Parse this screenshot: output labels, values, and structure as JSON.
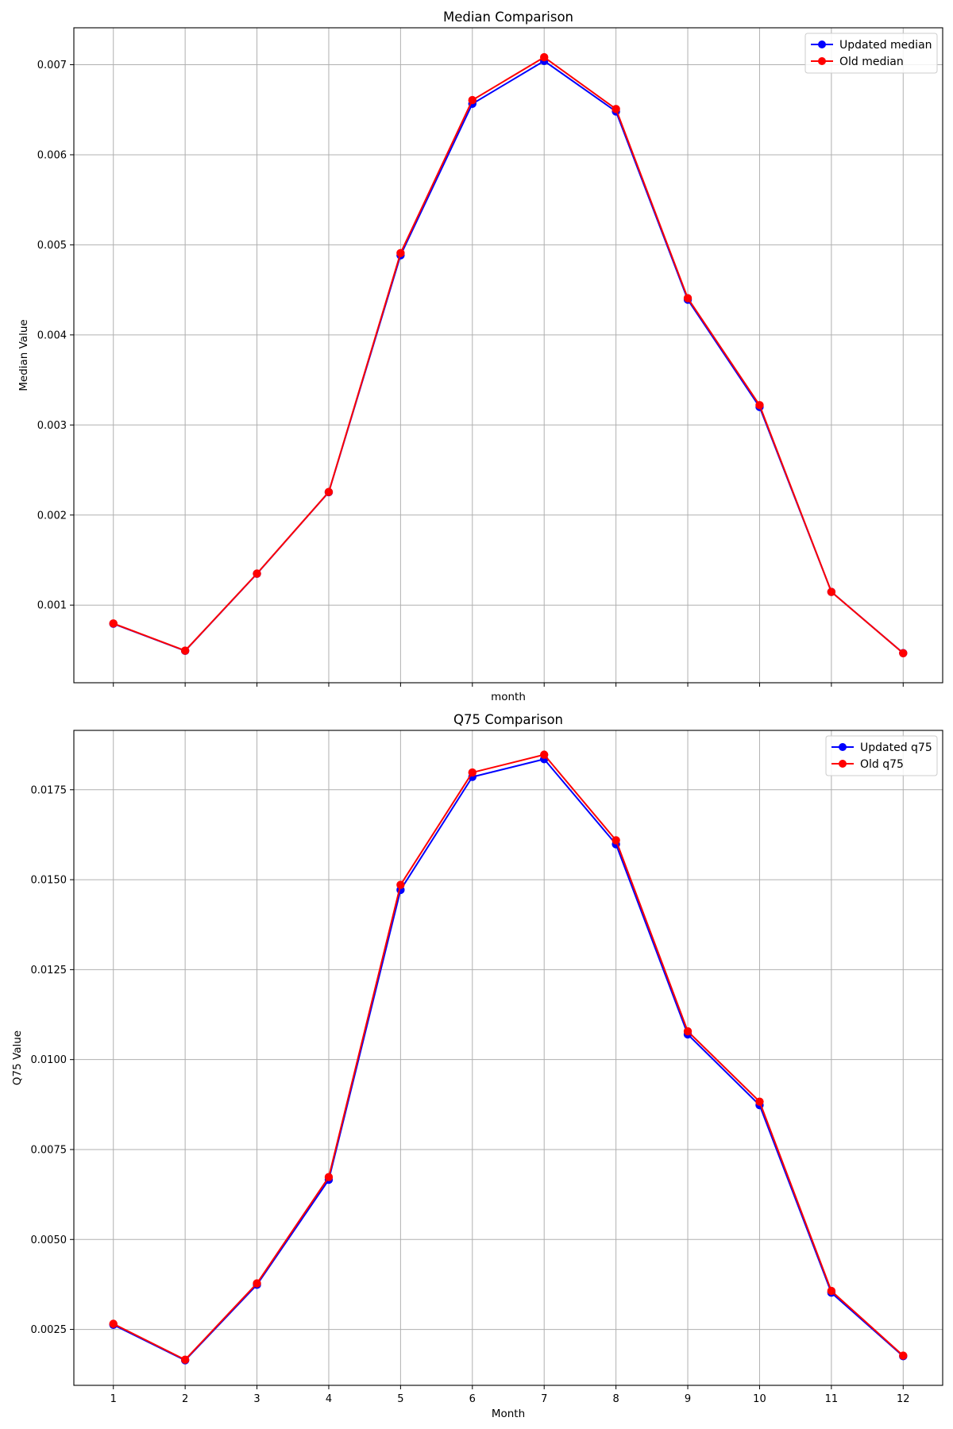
{
  "colors": {
    "updated": "#0000ff",
    "old": "#ff0000",
    "grid": "#b0b0b0",
    "axis": "#000000"
  },
  "chart_data": [
    {
      "type": "line",
      "title": "Median Comparison",
      "xlabel": "month",
      "ylabel": "Median Value",
      "x": [
        1,
        2,
        3,
        4,
        5,
        6,
        7,
        8,
        9,
        10,
        11,
        12
      ],
      "xlim": [
        0.45,
        12.55
      ],
      "ylim": [
        0.000138,
        0.00741
      ],
      "yticks": [
        0.001,
        0.002,
        0.003,
        0.004,
        0.005,
        0.006,
        0.007
      ],
      "ytick_labels": [
        "0.001",
        "0.002",
        "0.003",
        "0.004",
        "0.005",
        "0.006",
        "0.007"
      ],
      "xtick_labels_visible": false,
      "grid": true,
      "legend": "top-right",
      "series": [
        {
          "name": "Updated median",
          "color": "#0000ff",
          "marker": "circle",
          "values": [
            0.000793,
            0.000492,
            0.001348,
            0.002254,
            0.004884,
            0.006566,
            0.007042,
            0.006481,
            0.004391,
            0.0032,
            0.001147,
            0.000467
          ]
        },
        {
          "name": "Old median",
          "color": "#ff0000",
          "marker": "circle",
          "values": [
            0.000796,
            0.000494,
            0.00135,
            0.002256,
            0.004908,
            0.006607,
            0.007083,
            0.006508,
            0.004408,
            0.00322,
            0.001147,
            0.000466
          ]
        }
      ]
    },
    {
      "type": "line",
      "title": "Q75 Comparison",
      "xlabel": "Month",
      "ylabel": "Q75 Value",
      "x": [
        1,
        2,
        3,
        4,
        5,
        6,
        7,
        8,
        9,
        10,
        11,
        12
      ],
      "xlim": [
        0.45,
        12.55
      ],
      "ylim": [
        0.000946,
        0.01915
      ],
      "yticks": [
        0.0025,
        0.005,
        0.0075,
        0.01,
        0.0125,
        0.015,
        0.0175
      ],
      "ytick_labels": [
        "0.0025",
        "0.0050",
        "0.0075",
        "0.0100",
        "0.0125",
        "0.0150",
        "0.0175"
      ],
      "xticks": [
        1,
        2,
        3,
        4,
        5,
        6,
        7,
        8,
        9,
        10,
        11,
        12
      ],
      "xtick_labels": [
        "1",
        "2",
        "3",
        "4",
        "5",
        "6",
        "7",
        "8",
        "9",
        "10",
        "11",
        "12"
      ],
      "xtick_labels_visible": true,
      "grid": true,
      "legend": "top-right",
      "series": [
        {
          "name": "Updated q75",
          "color": "#0000ff",
          "marker": "circle",
          "values": [
            0.002628,
            0.001642,
            0.003741,
            0.00666,
            0.014716,
            0.017857,
            0.01835,
            0.015986,
            0.0107,
            0.008734,
            0.00352,
            0.001755
          ]
        },
        {
          "name": "Old q75",
          "color": "#ff0000",
          "marker": "circle",
          "values": [
            0.002656,
            0.001658,
            0.003781,
            0.006734,
            0.014857,
            0.017979,
            0.018474,
            0.016096,
            0.010786,
            0.008831,
            0.00357,
            0.001771
          ]
        }
      ]
    }
  ]
}
